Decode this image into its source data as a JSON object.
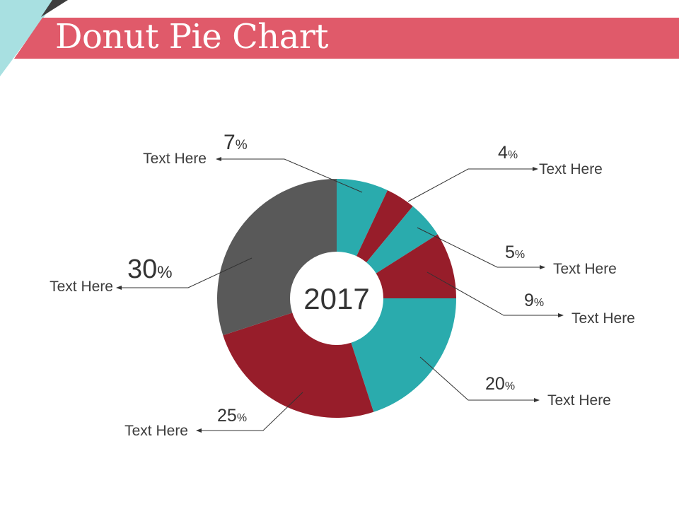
{
  "header": {
    "title": "Donut Pie Chart"
  },
  "colors": {
    "title_bar": "#E05A6A",
    "title_bar_dark": "#B73B4B",
    "corner_teal": "#A8E0E1",
    "corner_dark": "#3E3E3E",
    "teal": "#2AABAD",
    "red": "#971D2A",
    "gray": "#595959"
  },
  "chart_data": {
    "type": "pie",
    "donut": true,
    "center_label": "2017",
    "unit": "%",
    "slices": [
      {
        "value": 7,
        "color": "#2AABAD",
        "label": "Text Here",
        "value_text": "7"
      },
      {
        "value": 4,
        "color": "#971D2A",
        "label": "Text Here",
        "value_text": "4"
      },
      {
        "value": 5,
        "color": "#2AABAD",
        "label": "Text Here",
        "value_text": "5"
      },
      {
        "value": 9,
        "color": "#971D2A",
        "label": "Text Here",
        "value_text": "9"
      },
      {
        "value": 20,
        "color": "#2AABAD",
        "label": "Text Here",
        "value_text": "20"
      },
      {
        "value": 25,
        "color": "#971D2A",
        "label": "Text Here",
        "value_text": "25"
      },
      {
        "value": 30,
        "color": "#595959",
        "label": "Text Here",
        "value_text": "30"
      }
    ]
  }
}
